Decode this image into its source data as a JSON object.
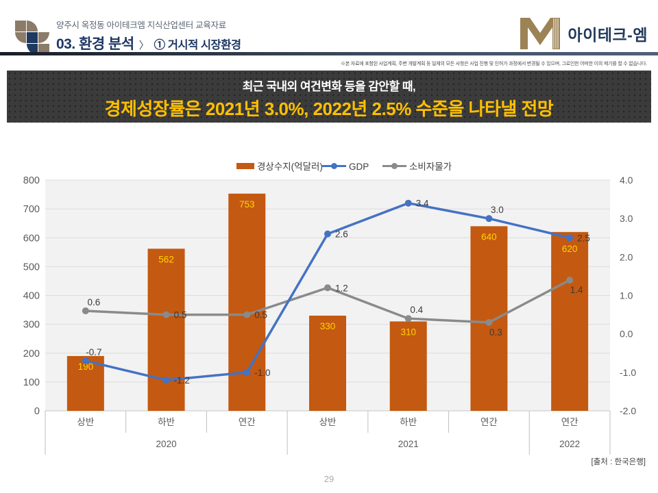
{
  "header": {
    "eyebrow": "양주시 옥정동 아이테크엠 지식산업센터 교육자료",
    "section": "03. 환경 분석",
    "separator": "〉",
    "subsection": "① 거시적 시장환경",
    "logo_text": "아이테크-엠",
    "disclaimer": "※본 자료에 포함된 사업계획, 주변 개발계획 등 일체의 모든 사항은 사업 진행 및 인허가 과정에서 변경될 수 있으며, 그로인한 어떠한 이의 제기를 할 수 없습니다."
  },
  "banner": {
    "line1": "최근 국내외 여건변화 등을 감안할 때,",
    "line2": "경제성장률은 2021년 3.0%, 2022년 2.5% 수준을 나타낼 전망",
    "bg_color": "#3B3B3B",
    "line2_color": "#FFC000"
  },
  "chart_data": {
    "type": "bar",
    "subtype": "bar+line combo, dual axis",
    "categories": [
      "상반",
      "하반",
      "연간",
      "상반",
      "하반",
      "연간",
      "연간"
    ],
    "groups": [
      {
        "label": "2020",
        "span": 3
      },
      {
        "label": "2021",
        "span": 3
      },
      {
        "label": "2022",
        "span": 1
      }
    ],
    "series": [
      {
        "name": "경상수지(억달러)",
        "type": "bar",
        "axis": "left",
        "color": "#C45911",
        "label_color": "#FFD400",
        "values": [
          190,
          562,
          753,
          330,
          310,
          640,
          620
        ],
        "label_dy": [
          0,
          0,
          0,
          0,
          0,
          0,
          9
        ]
      },
      {
        "name": "GDP",
        "type": "line",
        "axis": "right",
        "color": "#4472C4",
        "values": [
          -0.7,
          -1.2,
          -1.0,
          2.6,
          3.4,
          3.0,
          2.5
        ],
        "label_side": [
          "above",
          "right",
          "right",
          "right",
          "right",
          "above",
          "right"
        ]
      },
      {
        "name": "소비자물가",
        "type": "line",
        "axis": "right",
        "color": "#8A8A8A",
        "values": [
          0.6,
          0.5,
          0.5,
          1.2,
          0.4,
          0.3,
          1.4
        ],
        "label_side": [
          "above",
          "right",
          "right",
          "right",
          "above",
          "below",
          "below"
        ]
      }
    ],
    "left_axis": {
      "min": 0,
      "max": 800,
      "step": 100
    },
    "right_axis": {
      "min": -2.0,
      "max": 4.0,
      "step": 1.0,
      "decimals": 1
    },
    "legend_position": "top-center",
    "grid": true,
    "plot_bg": "#F2F2F2",
    "source": "[출처 : 한국은행]"
  },
  "footer": {
    "page_number": "29"
  }
}
